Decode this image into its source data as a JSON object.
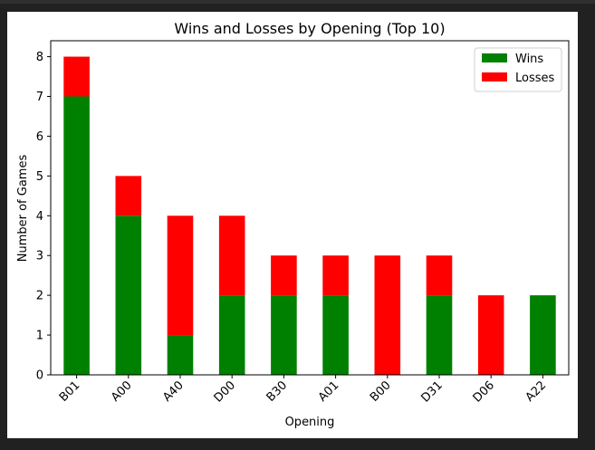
{
  "chart_data": {
    "type": "bar",
    "stacked": true,
    "title": "Wins and Losses by Opening (Top 10)",
    "xlabel": "Opening",
    "ylabel": "Number of Games",
    "categories": [
      "B01",
      "A00",
      "A40",
      "D00",
      "B30",
      "A01",
      "B00",
      "D31",
      "D06",
      "A22"
    ],
    "series": [
      {
        "name": "Wins",
        "color": "#008000",
        "values": [
          7,
          4,
          1,
          2,
          2,
          2,
          0,
          2,
          0,
          2
        ]
      },
      {
        "name": "Losses",
        "color": "#ff0000",
        "values": [
          1,
          1,
          3,
          2,
          1,
          1,
          3,
          1,
          2,
          0
        ]
      }
    ],
    "ylim": [
      0,
      8.4
    ],
    "yticks": [
      0,
      1,
      2,
      3,
      4,
      5,
      6,
      7,
      8
    ],
    "grid": false,
    "legend_position": "top-right"
  }
}
